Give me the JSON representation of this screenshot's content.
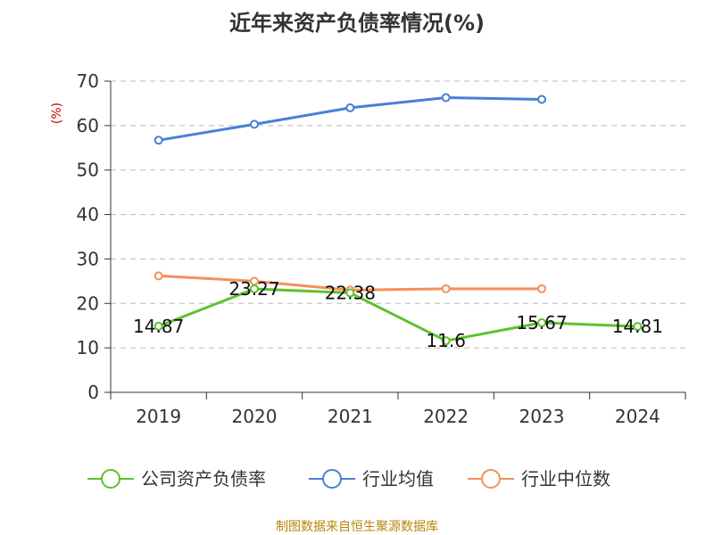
{
  "chart_data": {
    "type": "line",
    "title": "近年来资产负债率情况(%)",
    "ylabel": "(%)",
    "ylim": [
      0,
      70
    ],
    "yticks": [
      0,
      10,
      20,
      30,
      40,
      50,
      60,
      70
    ],
    "categories": [
      "2019",
      "2020",
      "2021",
      "2022",
      "2023",
      "2024"
    ],
    "grid": true,
    "legend_position": "bottom",
    "series": [
      {
        "name": "公司资产负债率",
        "color": "#5dc22b",
        "values": [
          14.87,
          23.27,
          22.38,
          11.6,
          15.67,
          14.81
        ],
        "data_labels": [
          "14.87",
          "23.27",
          "22.38",
          "11.6",
          "15.67",
          "14.81"
        ]
      },
      {
        "name": "行业均值",
        "color": "#4a7fd8",
        "values": [
          56.7,
          60.3,
          64.0,
          66.3,
          65.9,
          null
        ]
      },
      {
        "name": "行业中位数",
        "color": "#f58f5b",
        "values": [
          26.2,
          25.0,
          23.0,
          23.3,
          23.3,
          null
        ]
      }
    ]
  },
  "source": "制图数据来自恒生聚源数据库"
}
